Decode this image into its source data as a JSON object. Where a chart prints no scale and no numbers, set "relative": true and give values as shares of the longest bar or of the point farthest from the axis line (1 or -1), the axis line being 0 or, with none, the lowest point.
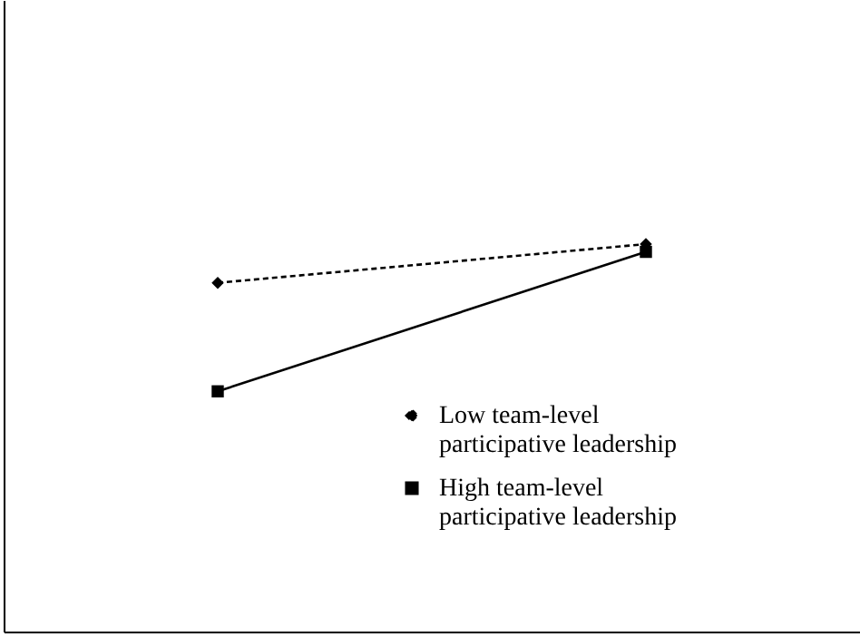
{
  "chart_data": {
    "type": "line",
    "relative": true,
    "categories": [
      null,
      null
    ],
    "legend": "bottom right",
    "series": [
      {
        "name": "Low team-level participative leadership",
        "color": "#000000",
        "marker": "diamond",
        "line_style": "dashed",
        "values": [
          0.9,
          1.0
        ]
      },
      {
        "name": "High team-level participative leadership",
        "color": "#000000",
        "marker": "square",
        "line_style": "solid",
        "values": [
          0.62,
          0.98
        ]
      }
    ]
  }
}
